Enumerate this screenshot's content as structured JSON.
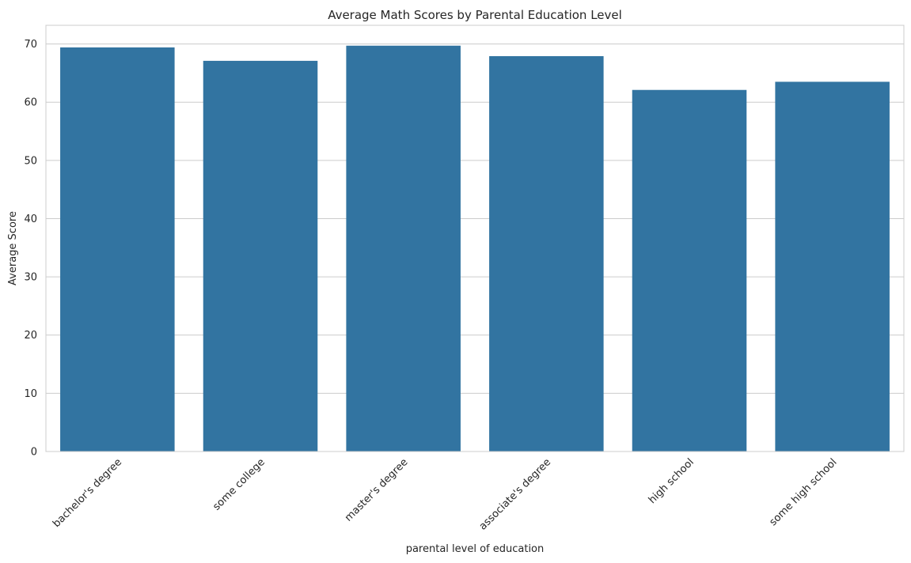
{
  "chart_data": {
    "type": "bar",
    "title": "Average Math Scores by Parental Education Level",
    "xlabel": "parental level of education",
    "ylabel": "Average Score",
    "categories": [
      "bachelor's degree",
      "some college",
      "master's degree",
      "associate's degree",
      "high school",
      "some high school"
    ],
    "values": [
      69.4,
      67.1,
      69.7,
      67.9,
      62.1,
      63.5
    ],
    "ylim": [
      0,
      73.2
    ],
    "yticks": [
      0,
      10,
      20,
      30,
      40,
      50,
      60,
      70
    ],
    "grid": true,
    "bar_color": "#3274a1",
    "grid_color": "#cccccc",
    "spine_color": "#cccccc"
  }
}
